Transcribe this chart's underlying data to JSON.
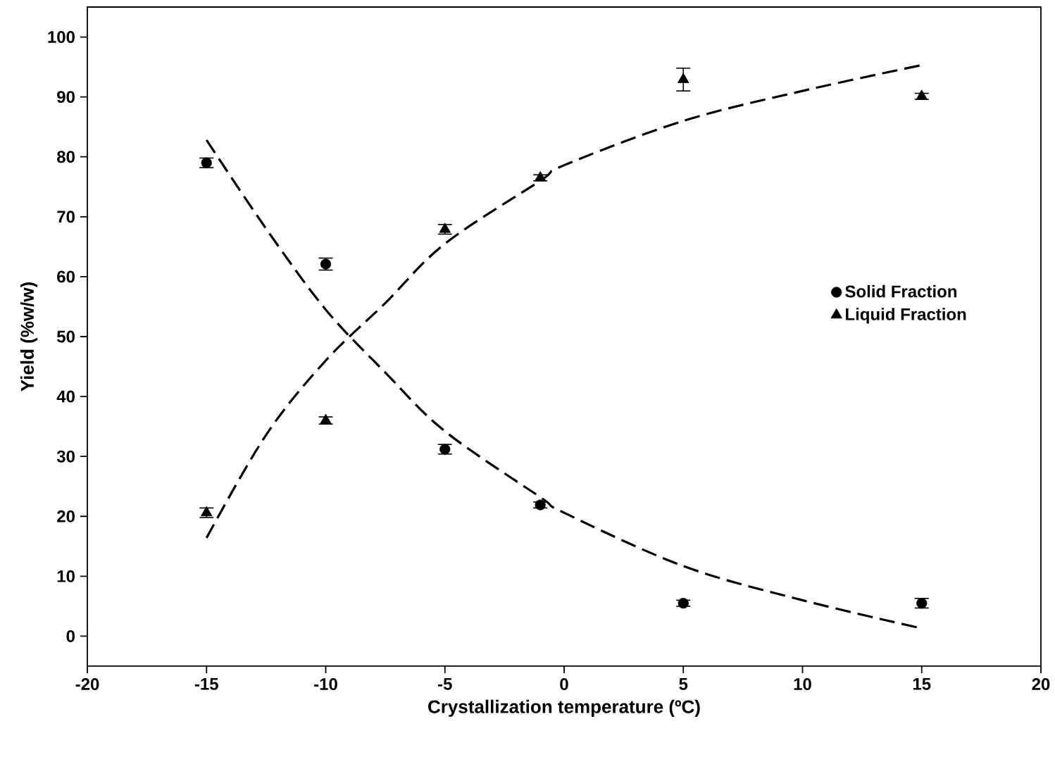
{
  "chart_data": {
    "type": "scatter",
    "xlabel": "Crystallization temperature (ºC)",
    "ylabel": "Yield (%w/w)",
    "xlim": [
      -20,
      20
    ],
    "xticks": [
      -20,
      -15,
      -10,
      -5,
      0,
      5,
      10,
      15,
      20
    ],
    "ylim": [
      -5,
      105
    ],
    "yticks": [
      0,
      10,
      20,
      30,
      40,
      50,
      60,
      70,
      80,
      90,
      100
    ],
    "grid": false,
    "legend": "right",
    "series": [
      {
        "name": "Solid Fraction",
        "marker": "circle",
        "color": "#000000",
        "x": [
          -15,
          -10,
          -5,
          -1,
          5,
          15
        ],
        "values": [
          79,
          62.1,
          31.2,
          21.9,
          5.5,
          5.5
        ],
        "errors": [
          0.8,
          1,
          0.8,
          0.5,
          0.5,
          0.8
        ]
      },
      {
        "name": "Liquid Fraction",
        "marker": "triangle",
        "color": "#000000",
        "x": [
          -15,
          -10,
          -5,
          -1,
          5,
          15
        ],
        "values": [
          20.6,
          36,
          67.9,
          76.5,
          92.9,
          90.1
        ],
        "errors": [
          0.8,
          0.6,
          0.8,
          0.5,
          1.9,
          0.5
        ]
      },
      {
        "type": "line",
        "line_style": "dashed",
        "color": "#000000",
        "x": [
          -15,
          -12.5,
          -10,
          -7.5,
          -5,
          -1,
          0,
          5,
          10,
          15
        ],
        "values": [
          82.8,
          68,
          54.5,
          44,
          34.2,
          23.2,
          20.6,
          11.7,
          6,
          1.3
        ]
      },
      {
        "type": "line",
        "line_style": "dashed",
        "color": "#000000",
        "x": [
          -15,
          -12.5,
          -10,
          -7.5,
          -5,
          -1,
          0,
          5,
          10,
          15
        ],
        "values": [
          16.4,
          33.6,
          46,
          55.6,
          65.5,
          76,
          78.6,
          86,
          91,
          95.3
        ]
      }
    ]
  }
}
